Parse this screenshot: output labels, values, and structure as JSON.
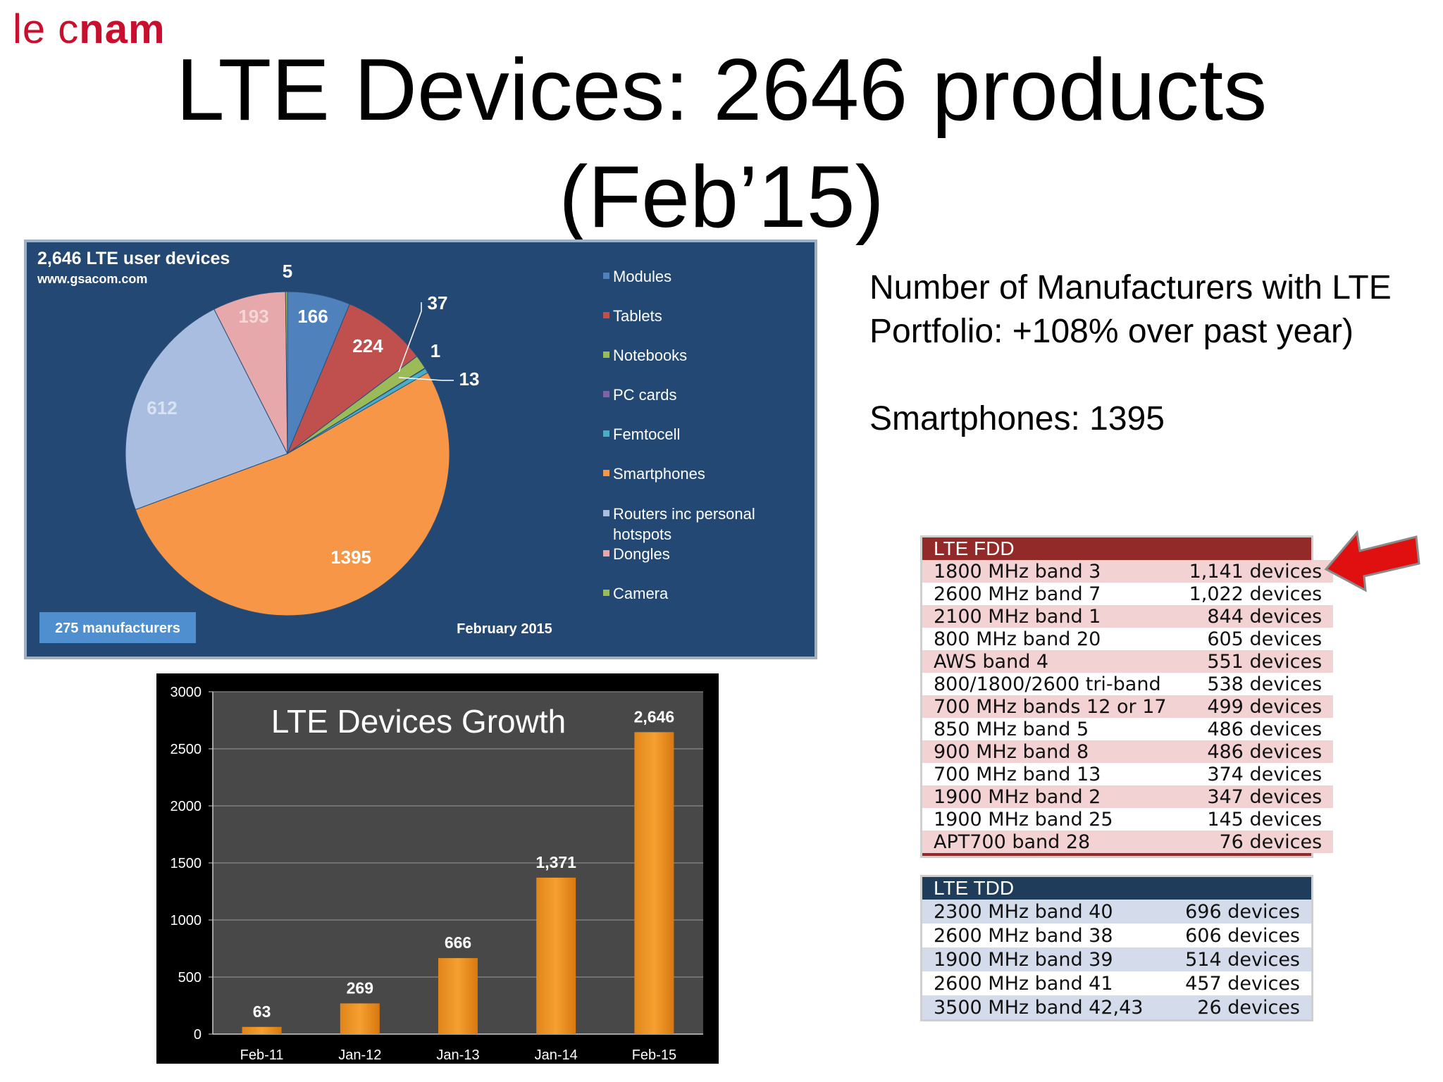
{
  "logo": {
    "part1": "le c",
    "part2": "nam"
  },
  "title_line1": "LTE Devices: 2646 products",
  "title_line2": "(Feb’15)",
  "side": {
    "line1": "Number of Manufacturers with LTE",
    "line2": "Portfolio: +108% over past year)",
    "line3": "Smartphones: 1395"
  },
  "colors": {
    "pie_bg": "#224873",
    "modules": "#4f81bd",
    "tablets": "#c0504d",
    "notebooks": "#9bbb59",
    "pc_cards": "#8064a2",
    "femtocell": "#4bacc6",
    "smartphones": "#f79646",
    "routers": "#a9bde0",
    "dongles": "#e6a8aa",
    "camera": "#9bbb59",
    "bar": "#f5a030",
    "arrow": "#e01010"
  },
  "chart_data": [
    {
      "type": "pie",
      "title": "2,646 LTE user devices",
      "subtitle": "www.gsacom.com",
      "footer_left": "275 manufacturers",
      "footer_right": "February 2015",
      "legend_position": "right",
      "slices": [
        {
          "name": "Modules",
          "value": 166,
          "color": "#4f81bd"
        },
        {
          "name": "Tablets",
          "value": 224,
          "color": "#c0504d"
        },
        {
          "name": "Notebooks",
          "value": 37,
          "color": "#9bbb59"
        },
        {
          "name": "PC cards",
          "value": 1,
          "color": "#8064a2"
        },
        {
          "name": "Femtocell",
          "value": 13,
          "color": "#4bacc6"
        },
        {
          "name": "Smartphones",
          "value": 1395,
          "color": "#f79646"
        },
        {
          "name": "Routers inc personal hotspots",
          "value": 612,
          "color": "#a9bde0"
        },
        {
          "name": "Dongles",
          "value": 193,
          "color": "#e6a8aa"
        },
        {
          "name": "Camera",
          "value": 5,
          "color": "#9bbb59"
        }
      ],
      "legend": [
        "Modules",
        "Tablets",
        "Notebooks",
        "PC cards",
        "Femtocell",
        "Smartphones",
        "Routers inc personal",
        "hotspots",
        "Dongles",
        "Camera"
      ]
    },
    {
      "type": "bar",
      "title": "LTE Devices Growth",
      "categories": [
        "Feb-11",
        "Jan-12",
        "Jan-13",
        "Jan-14",
        "Feb-15"
      ],
      "values": [
        63,
        269,
        666,
        1371,
        2646
      ],
      "value_labels": [
        "63",
        "269",
        "666",
        "1,371",
        "2,646"
      ],
      "ylim": [
        0,
        3000
      ],
      "yticks": [
        0,
        500,
        1000,
        1500,
        2000,
        2500,
        3000
      ],
      "grid": true
    },
    {
      "type": "table",
      "title": "LTE FDD",
      "rows": [
        [
          "1800 MHz band 3",
          "1,141 devices"
        ],
        [
          "2600 MHz band 7",
          "1,022 devices"
        ],
        [
          "2100 MHz band 1",
          "844 devices"
        ],
        [
          "800 MHz band 20",
          "605 devices"
        ],
        [
          "AWS band 4",
          "551 devices"
        ],
        [
          "800/1800/2600 tri-band",
          "538 devices"
        ],
        [
          "700 MHz bands 12 or 17",
          "499 devices"
        ],
        [
          "850 MHz band 5",
          "486 devices"
        ],
        [
          "900 MHz band 8",
          "486 devices"
        ],
        [
          "700 MHz band 13",
          "374 devices"
        ],
        [
          "1900 MHz band 2",
          "347 devices"
        ],
        [
          "1900 MHz band 25",
          "145 devices"
        ],
        [
          "APT700 band 28",
          "76 devices"
        ]
      ]
    },
    {
      "type": "table",
      "title": "LTE TDD",
      "rows": [
        [
          "2300 MHz band 40",
          "696 devices"
        ],
        [
          "2600 MHz band 38",
          "606 devices"
        ],
        [
          "1900 MHz band 39",
          "514 devices"
        ],
        [
          "2600 MHz band 41",
          "457 devices"
        ],
        [
          "3500 MHz band 42,43",
          "26 devices"
        ]
      ]
    }
  ]
}
